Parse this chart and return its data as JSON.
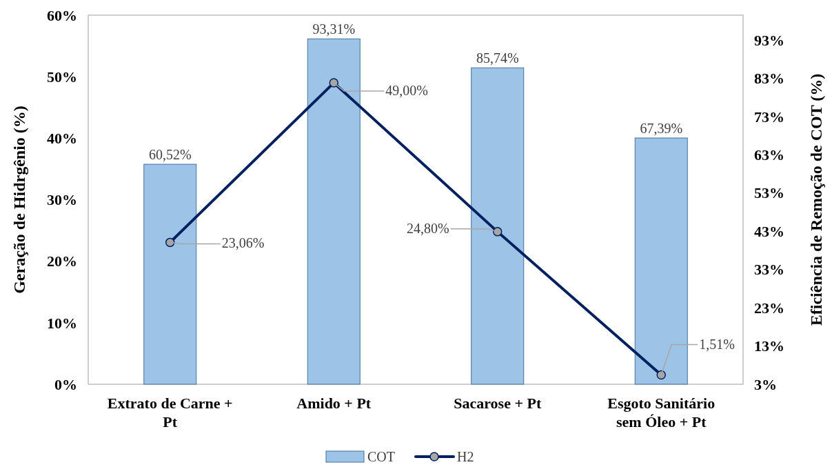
{
  "chart_data": {
    "type": "bar",
    "ylabel": "Geração de Hidrgênio (%)",
    "y2label": "Eficiência de Remoção de COT  (%)",
    "categories": [
      "Extrato de Carne + Pt",
      "Amido + Pt",
      "Sacarose + Pt",
      "Esgoto Sanitário sem Óleo + Pt"
    ],
    "series": [
      {
        "name": "COT",
        "axis": "y2",
        "color": "#9dc3e6",
        "values": [
          60.52,
          93.31,
          85.74,
          67.39
        ],
        "value_labels": [
          "60,52%",
          "93,31%",
          "85,74%",
          "67,39%"
        ]
      },
      {
        "name": "H2",
        "type": "line",
        "color": "#002060",
        "marker": "circle",
        "line_style": "solid",
        "values": [
          23.06,
          49.0,
          24.8,
          1.51
        ],
        "value_labels": [
          "23,06%",
          "49,00%",
          "24,80%",
          "1,51%"
        ]
      }
    ],
    "ylim": [
      0,
      60
    ],
    "yticks": [
      {
        "value": 0,
        "label": "0%"
      },
      {
        "value": 10,
        "label": "10%"
      },
      {
        "value": 20,
        "label": "20%"
      },
      {
        "value": 30,
        "label": "30%"
      },
      {
        "value": 40,
        "label": "40%"
      },
      {
        "value": 50,
        "label": "50%"
      },
      {
        "value": 60,
        "label": "60%"
      }
    ],
    "y2lim": [
      3,
      99.5
    ],
    "y2ticks": [
      {
        "value": 3,
        "label": "3%"
      },
      {
        "value": 13,
        "label": "13%"
      },
      {
        "value": 23,
        "label": "23%"
      },
      {
        "value": 33,
        "label": "33%"
      },
      {
        "value": 43,
        "label": "43%"
      },
      {
        "value": 53,
        "label": "53%"
      },
      {
        "value": 63,
        "label": "63%"
      },
      {
        "value": 73,
        "label": "73%"
      },
      {
        "value": 83,
        "label": "83%"
      },
      {
        "value": 93,
        "label": "93%"
      }
    ],
    "grid": false,
    "legend": "bottom"
  }
}
